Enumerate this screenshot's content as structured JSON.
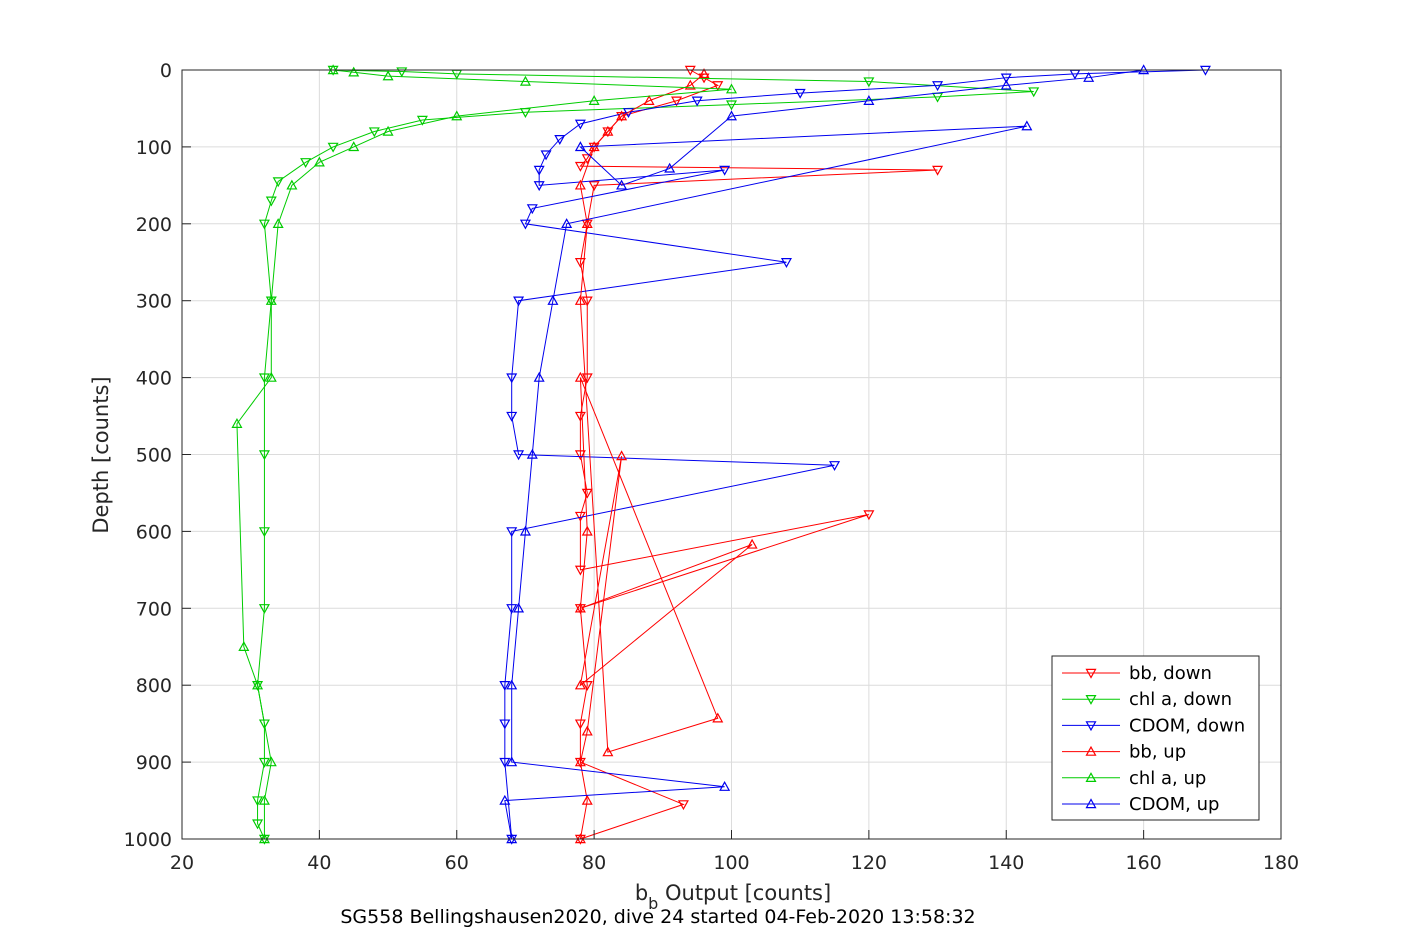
{
  "caption": "SG558 Bellingshausen2020, dive 24 started 04-Feb-2020 13:58:32",
  "chart_data": {
    "type": "scatter",
    "xlabel_main": "b",
    "xlabel_sub": "b",
    "xlabel_rest": " Output [counts]",
    "ylabel": "Depth [counts]",
    "xlim": [
      20,
      180
    ],
    "ylim": [
      0,
      1000
    ],
    "y_reversed": true,
    "grid": true,
    "legend_position": "bottom-right",
    "x_ticks": [
      "20",
      "40",
      "60",
      "80",
      "100",
      "120",
      "140",
      "160",
      "180"
    ],
    "y_ticks": [
      "0",
      "100",
      "200",
      "300",
      "400",
      "500",
      "600",
      "700",
      "800",
      "900",
      "1000"
    ],
    "series": [
      {
        "name": "bb, down",
        "color": "#ff0000",
        "marker": "triangle-down",
        "x": [
          94,
          96,
          98,
          92,
          84,
          82,
          80,
          79,
          78,
          130,
          80,
          79,
          78,
          79,
          79,
          78,
          78,
          79,
          78,
          78,
          120,
          78,
          79,
          78,
          78,
          93,
          78
        ],
        "y": [
          0,
          10,
          20,
          40,
          60,
          80,
          100,
          115,
          125,
          130,
          150,
          200,
          250,
          300,
          400,
          450,
          500,
          550,
          580,
          650,
          578,
          700,
          800,
          850,
          900,
          955,
          1000
        ]
      },
      {
        "name": "chl a, down",
        "color": "#00cc00",
        "marker": "triangle-down",
        "x": [
          42,
          52,
          60,
          120,
          144,
          130,
          100,
          70,
          55,
          48,
          42,
          38,
          34,
          33,
          32,
          33,
          32,
          32,
          32,
          32,
          31,
          32,
          32,
          31,
          31,
          32
        ],
        "y": [
          0,
          2,
          5,
          15,
          28,
          35,
          45,
          55,
          65,
          80,
          100,
          120,
          145,
          170,
          200,
          300,
          400,
          500,
          600,
          700,
          800,
          850,
          900,
          950,
          980,
          1000
        ]
      },
      {
        "name": "CDOM, down",
        "color": "#0000ee",
        "marker": "triangle-down",
        "x": [
          169,
          150,
          140,
          130,
          110,
          95,
          85,
          78,
          75,
          73,
          72,
          72,
          99,
          71,
          70,
          108,
          69,
          68,
          68,
          69,
          115,
          68,
          68,
          67,
          67,
          67,
          68
        ],
        "y": [
          0,
          5,
          10,
          20,
          30,
          40,
          55,
          70,
          90,
          110,
          130,
          150,
          130,
          180,
          200,
          250,
          300,
          400,
          450,
          500,
          514,
          600,
          700,
          800,
          850,
          900,
          1000
        ]
      },
      {
        "name": "bb, up",
        "color": "#ff0000",
        "marker": "triangle-up",
        "x": [
          78,
          79,
          78,
          79,
          84,
          78,
          103,
          78,
          79,
          78,
          98,
          82,
          78,
          79,
          78,
          80,
          82,
          84,
          88,
          94,
          96
        ],
        "y": [
          1000,
          950,
          900,
          860,
          502,
          800,
          617,
          700,
          600,
          400,
          843,
          887,
          300,
          200,
          150,
          100,
          80,
          60,
          40,
          20,
          5
        ]
      },
      {
        "name": "chl a, up",
        "color": "#00cc00",
        "marker": "triangle-up",
        "x": [
          32,
          32,
          33,
          31,
          29,
          28,
          33,
          33,
          34,
          36,
          40,
          45,
          50,
          60,
          80,
          100,
          70,
          50,
          45,
          42
        ],
        "y": [
          1000,
          950,
          900,
          800,
          750,
          460,
          400,
          300,
          200,
          150,
          120,
          100,
          80,
          60,
          40,
          25,
          15,
          8,
          3,
          0
        ]
      },
      {
        "name": "CDOM, up",
        "color": "#0000ee",
        "marker": "triangle-up",
        "x": [
          68,
          67,
          99,
          68,
          68,
          69,
          70,
          71,
          72,
          74,
          76,
          143,
          78,
          84,
          91,
          100,
          120,
          140,
          152,
          160
        ],
        "y": [
          1000,
          950,
          932,
          900,
          800,
          700,
          600,
          500,
          400,
          300,
          200,
          73,
          100,
          150,
          128,
          60,
          40,
          20,
          10,
          0
        ]
      }
    ]
  }
}
